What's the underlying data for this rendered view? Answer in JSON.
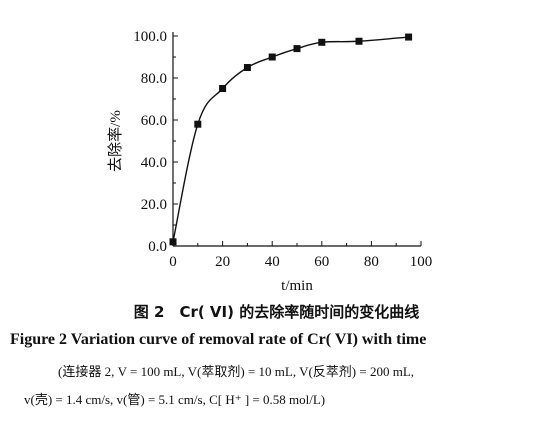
{
  "chart_data": {
    "type": "line",
    "xlabel": "t/min",
    "ylabel": "去除率/%",
    "xlim": [
      0,
      100
    ],
    "ylim": [
      0,
      100
    ],
    "x_ticks": [
      "0",
      "20",
      "40",
      "60",
      "80",
      "100"
    ],
    "y_ticks": [
      "0.0",
      "20.0",
      "40.0",
      "60.0",
      "80.0",
      "100.0"
    ],
    "series": [
      {
        "marker": "square",
        "x": [
          0,
          10,
          20,
          30,
          40,
          50,
          60,
          75,
          95
        ],
        "y": [
          2,
          58,
          75,
          85,
          90,
          94,
          97,
          97.5,
          99.5
        ]
      }
    ],
    "grid": false,
    "legend": "none"
  },
  "caption": {
    "zh": "图 2　Cr( VI) 的去除率随时间的变化曲线",
    "en": "Figure 2    Variation curve of removal rate of Cr( VI)  with time",
    "conditions_line1": "(连接器 2, V = 100 mL, V(萃取剂) = 10 mL, V(反萃剂) = 200 mL,",
    "conditions_line2": "v(壳) = 1.4 cm/s, v(管) = 5.1 cm/s, C[ H⁺ ] = 0.58 mol/L)"
  },
  "colors": {
    "ink": "#111111"
  }
}
